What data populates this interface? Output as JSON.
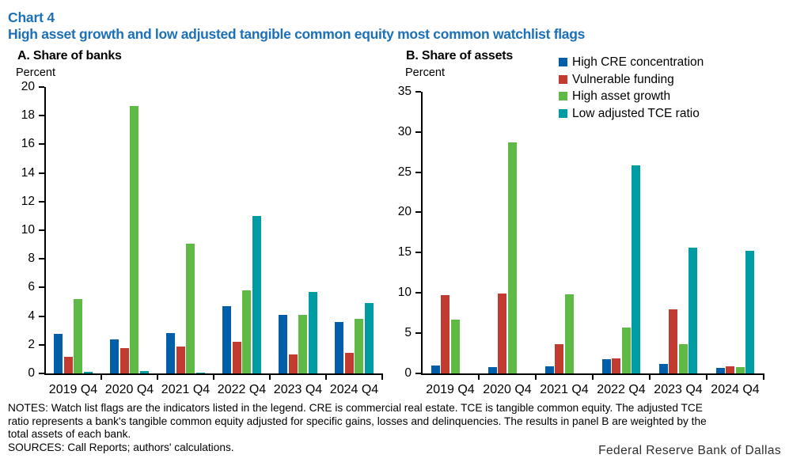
{
  "header": {
    "chart_label": "Chart 4",
    "title": "High asset growth and low adjusted tangible common equity most common watchlist flags"
  },
  "colors": {
    "title_blue": "#1B70B7",
    "axis": "#000000",
    "series": [
      "#005FA8",
      "#C13B31",
      "#5EB945",
      "#009CA4"
    ]
  },
  "legend": {
    "items": [
      {
        "label": "High CRE concentration",
        "color": "#005FA8"
      },
      {
        "label": "Vulnerable funding",
        "color": "#C13B31"
      },
      {
        "label": "High asset growth",
        "color": "#5EB945"
      },
      {
        "label": "Low adjusted TCE ratio",
        "color": "#009CA4"
      }
    ]
  },
  "chart_data": [
    {
      "type": "bar",
      "panel": "A",
      "title": "A. Share of banks",
      "ylabel": "Percent",
      "ylim": [
        0,
        20
      ],
      "ytick_step": 2,
      "grid": false,
      "legend_position": "top-right-shared",
      "categories": [
        "2019 Q4",
        "2020 Q4",
        "2021 Q4",
        "2022 Q4",
        "2023 Q4",
        "2024 Q4"
      ],
      "series": [
        {
          "name": "High CRE concentration",
          "values": [
            2.75,
            2.35,
            2.8,
            4.7,
            4.1,
            3.6
          ]
        },
        {
          "name": "Vulnerable funding",
          "values": [
            1.15,
            1.75,
            1.9,
            2.2,
            1.3,
            1.45
          ]
        },
        {
          "name": "High asset growth",
          "values": [
            5.2,
            18.7,
            9.05,
            5.8,
            4.1,
            3.8
          ]
        },
        {
          "name": "Low adjusted TCE ratio",
          "values": [
            0.1,
            0.17,
            0.07,
            11.0,
            5.7,
            4.9
          ]
        }
      ]
    },
    {
      "type": "bar",
      "panel": "B",
      "title": "B. Share of assets",
      "ylabel": "Percent",
      "ylim": [
        0,
        35
      ],
      "ytick_step": 5,
      "grid": false,
      "legend_position": "top-right-shared",
      "categories": [
        "2019 Q4",
        "2020 Q4",
        "2021 Q4",
        "2022 Q4",
        "2023 Q4",
        "2024 Q4"
      ],
      "series": [
        {
          "name": "High CRE concentration",
          "values": [
            1.0,
            0.8,
            0.9,
            1.8,
            1.2,
            0.7
          ]
        },
        {
          "name": "Vulnerable funding",
          "values": [
            9.7,
            9.9,
            3.6,
            1.9,
            8.0,
            0.9
          ]
        },
        {
          "name": "High asset growth",
          "values": [
            6.7,
            28.7,
            9.8,
            5.7,
            3.6,
            0.75
          ]
        },
        {
          "name": "Low adjusted TCE ratio",
          "values": [
            0,
            0,
            0,
            25.8,
            15.6,
            15.2
          ]
        }
      ]
    }
  ],
  "notes": {
    "lines": [
      "NOTES: Watch list flags are the indicators listed in the legend. CRE is commercial real estate. TCE is tangible common equity. The adjusted TCE",
      "ratio represents a bank's tangible common equity adjusted for specific gains, losses and delinquencies. The results in panel B are weighted by the",
      "total assets of each bank."
    ],
    "sources": "SOURCES: Call Reports; authors' calculations."
  },
  "footer": {
    "brand": "Federal Reserve Bank of Dallas"
  }
}
